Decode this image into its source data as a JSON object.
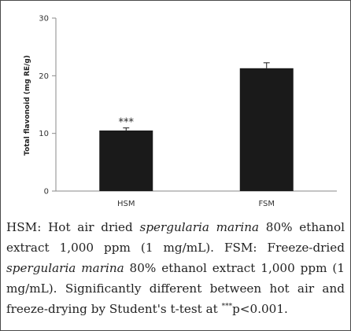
{
  "chart_data": {
    "type": "bar",
    "categories": [
      "HSM",
      "FSM"
    ],
    "values": [
      10.5,
      21.3
    ],
    "errors": [
      0.45,
      0.95
    ],
    "annotations": [
      "***",
      ""
    ],
    "title": "",
    "xlabel": "",
    "ylabel": "Total flavonoid  (mg RE/g)",
    "ylim": [
      0,
      30
    ],
    "yticks": [
      "0",
      "10",
      "20",
      "30"
    ],
    "grid": false,
    "bar_color": "#1a1a1a"
  },
  "caption": {
    "p1": "HSM: Hot air dried ",
    "p2": "spergularia marina",
    "p3": " 80% ethanol extract 1,000 ppm (1 mg/mL). FSM: Freeze-dried ",
    "p4": "spergularia marina",
    "p5": " 80% ethanol extract 1,000 ppm (1 mg/mL). Significantly different between hot air and freeze-drying by Student's t-test at ",
    "sup": "***",
    "p6": "p<0.001."
  }
}
